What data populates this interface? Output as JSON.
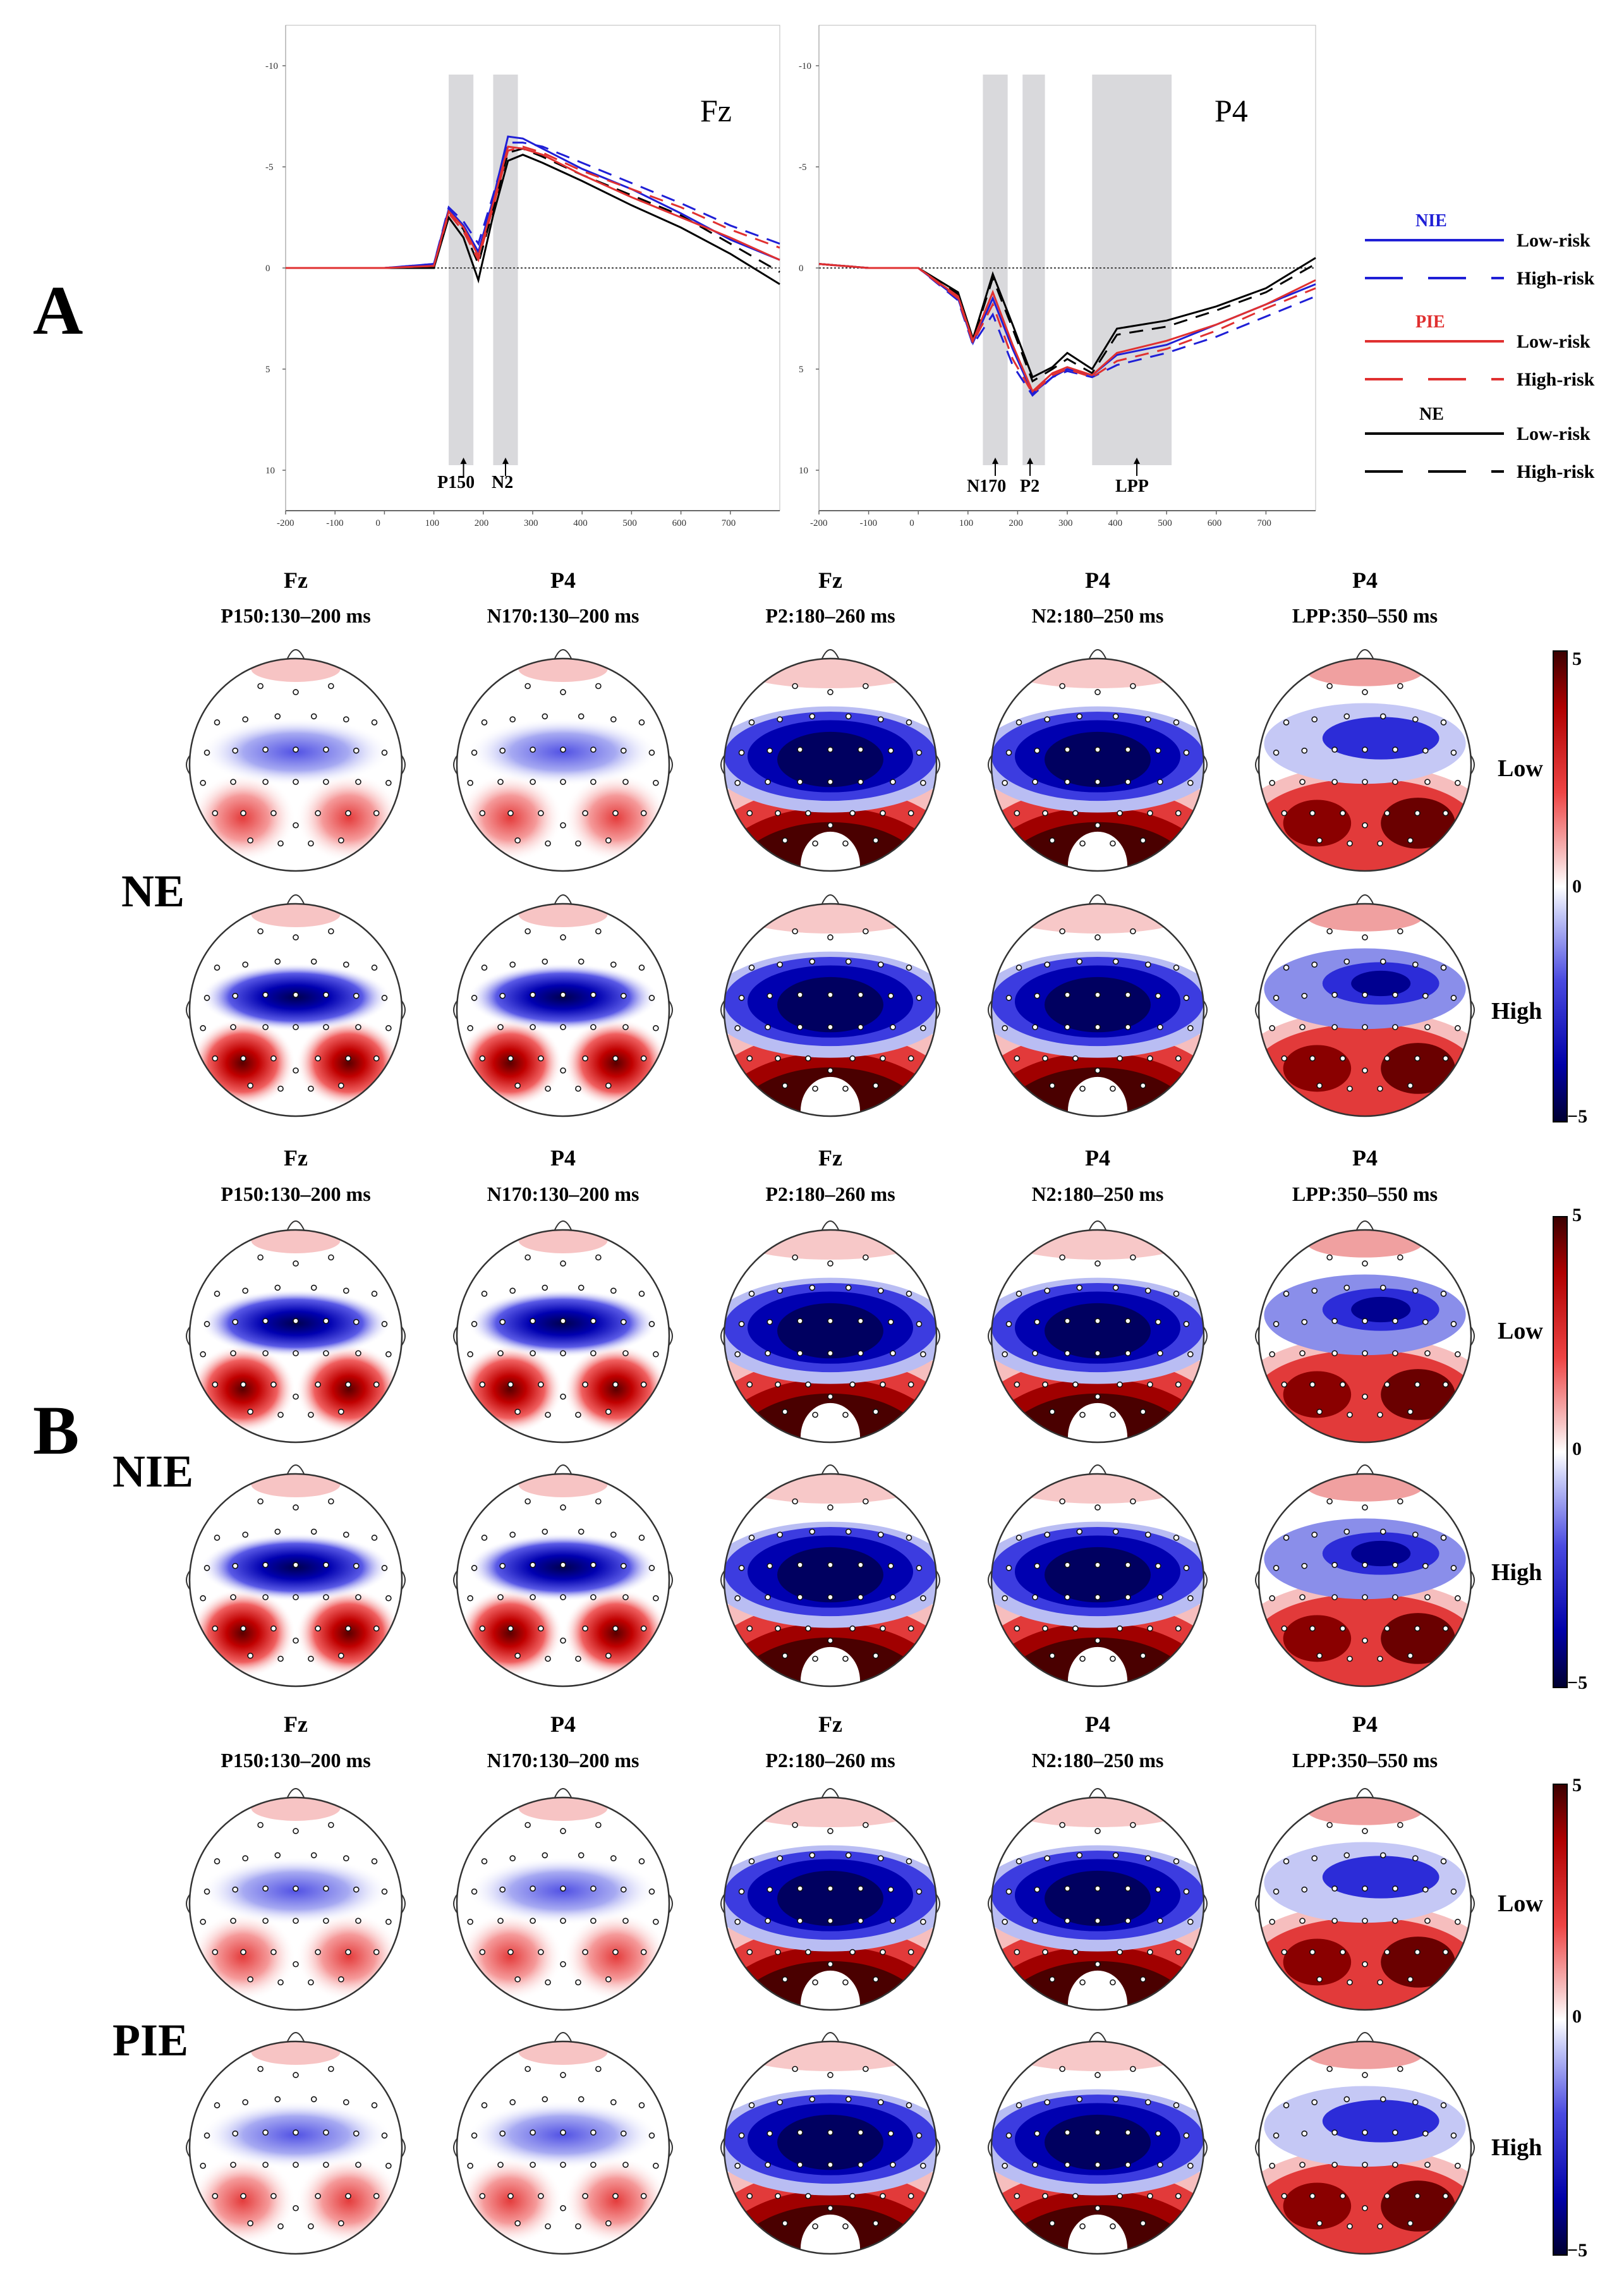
{
  "panels": {
    "a": "A",
    "b": "B"
  },
  "erp": {
    "x_ticks": [
      "-200",
      "-100",
      "0",
      "100",
      "200",
      "300",
      "400",
      "500",
      "600",
      "700"
    ],
    "y_ticks": [
      "-10",
      "-5",
      "0",
      "5",
      "10"
    ],
    "fz": {
      "electrode": "Fz",
      "components": [
        "P150",
        "N2"
      ]
    },
    "p4": {
      "electrode": "P4",
      "components": [
        "N170",
        "P2",
        "LPP"
      ]
    }
  },
  "legend": [
    {
      "condition": "NIE",
      "color": "#1f1fd6",
      "low": "Low-risk",
      "high": "High-risk"
    },
    {
      "condition": "PIE",
      "color": "#e03030",
      "low": "Low-risk",
      "high": "High-risk"
    },
    {
      "condition": "NE",
      "color": "#000000",
      "low": "Low-risk",
      "high": "High-risk"
    }
  ],
  "topo": {
    "columns": [
      {
        "electrode": "Fz",
        "component": "P150:130–200 ms"
      },
      {
        "electrode": "P4",
        "component": "N170:130–200 ms"
      },
      {
        "electrode": "Fz",
        "component": "P2:180–260 ms"
      },
      {
        "electrode": "P4",
        "component": "N2:180–250 ms"
      },
      {
        "electrode": "P4",
        "component": "LPP:350–550 ms"
      }
    ],
    "groups": [
      {
        "label": "NE",
        "low": "Low",
        "high": "High"
      },
      {
        "label": "NIE",
        "low": "Low",
        "high": "High"
      },
      {
        "label": "PIE",
        "low": "Low",
        "high": "High"
      }
    ],
    "colorbar": {
      "max": "5",
      "zero": "0",
      "min": "−5"
    }
  },
  "chart_data": [
    {
      "type": "line",
      "title": "Fz",
      "xlabel": "",
      "ylabel": "",
      "xlim": [
        -200,
        800
      ],
      "ylim": [
        -12,
        12
      ],
      "y_inverted": true,
      "x": [
        -200,
        -100,
        0,
        100,
        130,
        160,
        190,
        220,
        250,
        280,
        320,
        400,
        500,
        600,
        700,
        800
      ],
      "series": [
        {
          "name": "NE Low-risk",
          "values": [
            0,
            0,
            0,
            0,
            -2.5,
            -1.5,
            0.6,
            -2.6,
            -5.3,
            -5.6,
            -5.2,
            -4.3,
            -3.1,
            -2.0,
            -0.7,
            0.8
          ]
        },
        {
          "name": "NE High-risk",
          "values": [
            0,
            0,
            0,
            0,
            -2.8,
            -1.9,
            -0.2,
            -2.9,
            -5.7,
            -5.9,
            -5.5,
            -4.6,
            -3.6,
            -2.6,
            -1.2,
            0.2
          ]
        },
        {
          "name": "NIE Low-risk",
          "values": [
            0,
            0,
            0,
            -0.2,
            -2.9,
            -2.1,
            -0.8,
            -3.4,
            -6.5,
            -6.4,
            -5.9,
            -4.9,
            -3.9,
            -2.7,
            -1.4,
            -0.4
          ]
        },
        {
          "name": "NIE High-risk",
          "values": [
            0,
            0,
            0,
            -0.2,
            -3.0,
            -2.3,
            -1.2,
            -3.6,
            -6.2,
            -6.2,
            -6.0,
            -5.2,
            -4.2,
            -3.2,
            -2.1,
            -1.2
          ]
        },
        {
          "name": "PIE Low-risk",
          "values": [
            0,
            0,
            0,
            -0.1,
            -2.8,
            -2.0,
            -0.6,
            -3.2,
            -6.0,
            -5.9,
            -5.6,
            -4.6,
            -3.5,
            -2.5,
            -1.5,
            -0.4
          ]
        },
        {
          "name": "PIE High-risk",
          "values": [
            0,
            0,
            0,
            -0.1,
            -2.7,
            -1.8,
            -0.4,
            -3.0,
            -5.8,
            -6.0,
            -5.7,
            -4.8,
            -3.9,
            -3.0,
            -1.9,
            -1.0
          ]
        }
      ]
    },
    {
      "type": "line",
      "title": "P4",
      "xlabel": "",
      "ylabel": "",
      "xlim": [
        -200,
        800
      ],
      "ylim": [
        -12,
        12
      ],
      "y_inverted": true,
      "x": [
        -200,
        -100,
        0,
        80,
        110,
        150,
        190,
        230,
        270,
        300,
        350,
        400,
        500,
        600,
        700,
        800
      ],
      "series": [
        {
          "name": "NE Low-risk",
          "values": [
            -0.2,
            0,
            0,
            1.2,
            3.5,
            0.3,
            2.8,
            5.4,
            4.9,
            4.2,
            5.0,
            3.0,
            2.6,
            1.9,
            1.0,
            -0.5
          ]
        },
        {
          "name": "NE High-risk",
          "values": [
            -0.2,
            0,
            0,
            1.3,
            3.6,
            0.5,
            3.0,
            5.6,
            5.0,
            4.5,
            5.2,
            3.3,
            2.9,
            2.1,
            1.2,
            -0.2
          ]
        },
        {
          "name": "NIE Low-risk",
          "values": [
            -0.2,
            0,
            0,
            1.5,
            3.7,
            1.5,
            4.0,
            6.2,
            5.4,
            5.0,
            5.3,
            4.3,
            3.8,
            2.8,
            1.8,
            0.8
          ]
        },
        {
          "name": "NIE High-risk",
          "values": [
            -0.2,
            0,
            0,
            1.6,
            3.8,
            2.3,
            4.8,
            6.3,
            5.4,
            5.1,
            5.4,
            4.8,
            4.2,
            3.4,
            2.4,
            1.4
          ]
        },
        {
          "name": "PIE Low-risk",
          "values": [
            -0.2,
            0,
            0,
            1.4,
            3.6,
            1.2,
            3.8,
            6.1,
            5.2,
            4.9,
            5.3,
            4.2,
            3.6,
            2.8,
            1.8,
            0.6
          ]
        },
        {
          "name": "PIE High-risk",
          "values": [
            -0.2,
            0,
            0,
            1.5,
            3.7,
            1.8,
            4.5,
            6.2,
            5.3,
            5.0,
            5.4,
            4.6,
            4.0,
            3.1,
            2.0,
            1.0
          ]
        }
      ]
    }
  ]
}
